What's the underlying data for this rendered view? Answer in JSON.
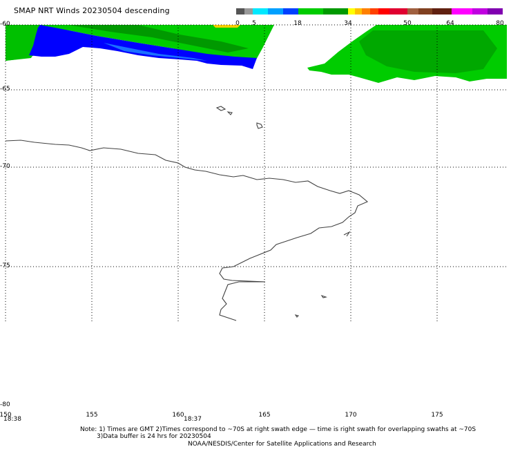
{
  "header": {
    "title": "SMAP NRT Winds  20230504 descending"
  },
  "colorbar": {
    "labels": [
      "0",
      "5",
      "18",
      "34",
      "50",
      "64",
      "80"
    ],
    "colors": [
      "#606060",
      "#909090",
      "#00ffff",
      "#00a8ff",
      "#0050ff",
      "#00d000",
      "#00a800",
      "#ffff00",
      "#ffd000",
      "#ff8000",
      "#ff4000",
      "#ff0000",
      "#e00040",
      "#a06040",
      "#804020",
      "#602000",
      "#ff00ff",
      "#c000ff",
      "#8000c0"
    ]
  },
  "map": {
    "lat_labels": [
      "-60",
      "-65",
      "-70",
      "-75",
      "-80"
    ],
    "lon_labels": [
      "150",
      "155",
      "160",
      "165",
      "170",
      "175"
    ],
    "time_labels": [
      "18:38",
      "18:37"
    ],
    "wind_colors": {
      "green": "#00cc00",
      "dark_green": "#009900",
      "blue": "#0000ff",
      "light_blue": "#0090ff",
      "yellow": "#ffd000"
    }
  },
  "notes": {
    "line1": "Note: 1) Times are GMT 2)Times correspond to ~70S at right swath edge — time is right swath for overlapping swaths at ~70S",
    "line2": "3)Data buffer is 24 hrs for 20230504",
    "line3": "NOAA/NESDIS/Center for Satellite Applications and Research"
  }
}
